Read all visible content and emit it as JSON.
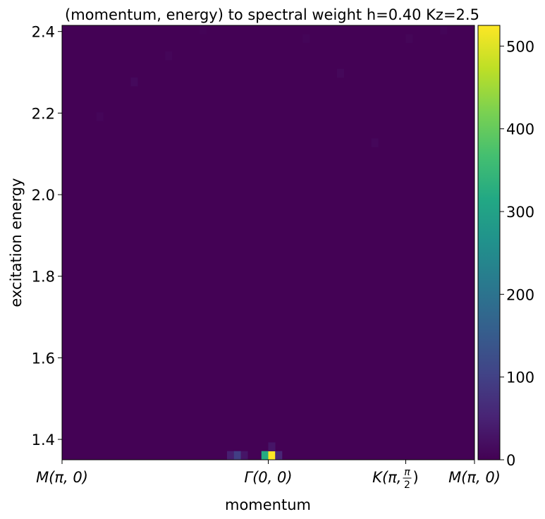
{
  "chart_data": {
    "type": "heatmap",
    "title": "(momentum, energy) to spectral weight h=0.40 Kz=2.5",
    "xlabel": "momentum",
    "ylabel": "excitation energy",
    "x_ticks": [
      {
        "pos": 0.0,
        "main": "M(π, 0)"
      },
      {
        "pos": 0.5,
        "main": "Γ(0, 0)"
      },
      {
        "pos": 0.8333,
        "main": "K(π, ",
        "frac_num": "π",
        "frac_den": "2",
        "tail": ")"
      },
      {
        "pos": 1.0,
        "main": "M(π, 0)"
      }
    ],
    "y_ticks": [
      "1.4",
      "1.6",
      "1.8",
      "2.0",
      "2.2",
      "2.4"
    ],
    "y_tick_values": [
      1.4,
      1.6,
      1.8,
      2.0,
      2.2,
      2.4
    ],
    "ylim": [
      1.35,
      2.415
    ],
    "xlim": [
      0,
      1
    ],
    "colorbar": {
      "min": 0,
      "max": 525,
      "ticks": [
        "0",
        "100",
        "200",
        "300",
        "400",
        "500"
      ],
      "tick_values": [
        0,
        100,
        200,
        300,
        400,
        500
      ],
      "colormap": "viridis"
    },
    "grid": {
      "nx": 60,
      "ny": 50
    },
    "background_value": 2,
    "peaks": [
      {
        "x": 0.505,
        "y": 1.357,
        "value": 525
      },
      {
        "x": 0.495,
        "y": 1.357,
        "value": 320
      },
      {
        "x": 0.515,
        "y": 1.357,
        "value": 180
      },
      {
        "x": 0.505,
        "y": 1.371,
        "value": 160
      },
      {
        "x": 0.495,
        "y": 1.371,
        "value": 110
      },
      {
        "x": 0.515,
        "y": 1.371,
        "value": 90
      },
      {
        "x": 0.485,
        "y": 1.357,
        "value": 60
      },
      {
        "x": 0.525,
        "y": 1.357,
        "value": 55
      },
      {
        "x": 0.485,
        "y": 1.371,
        "value": 40
      },
      {
        "x": 0.505,
        "y": 1.385,
        "value": 30
      },
      {
        "x": 0.425,
        "y": 1.357,
        "value": 95
      },
      {
        "x": 0.425,
        "y": 1.371,
        "value": 55
      },
      {
        "x": 0.415,
        "y": 1.357,
        "value": 45
      },
      {
        "x": 0.435,
        "y": 1.357,
        "value": 30
      },
      {
        "x": 0.175,
        "y": 2.27,
        "value": 12
      },
      {
        "x": 0.085,
        "y": 2.19,
        "value": 8
      },
      {
        "x": 0.255,
        "y": 2.35,
        "value": 8
      },
      {
        "x": 0.675,
        "y": 2.305,
        "value": 10
      },
      {
        "x": 0.755,
        "y": 2.125,
        "value": 9
      },
      {
        "x": 0.595,
        "y": 2.39,
        "value": 6
      },
      {
        "x": 0.835,
        "y": 2.385,
        "value": 7
      },
      {
        "x": 0.925,
        "y": 2.4,
        "value": 6
      },
      {
        "x": 0.345,
        "y": 2.395,
        "value": 5
      }
    ]
  }
}
